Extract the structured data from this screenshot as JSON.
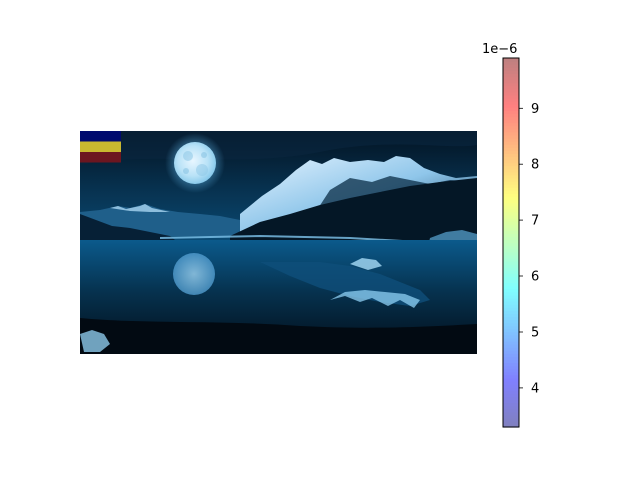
{
  "chart_data": {
    "type": "heatmap",
    "title": "",
    "xlabel": "",
    "ylabel": "",
    "image_content": "night landscape photograph: full moon over snowy mountains reflected in a lake, rendered in blue tones",
    "axes_visible": false,
    "overlay_stripes": [
      {
        "color": "#000a6e"
      },
      {
        "color": "#c8b830"
      },
      {
        "color": "#6c1620"
      }
    ],
    "colorbar": {
      "colormap": "jet",
      "alpha": 0.5,
      "range": [
        3.3e-06,
        9.9e-06
      ],
      "ticks": [
        4,
        5,
        6,
        7,
        8,
        9
      ],
      "tick_labels": [
        "4",
        "5",
        "6",
        "7",
        "8",
        "9"
      ],
      "offset_text": "1e−6",
      "position": "right"
    }
  }
}
